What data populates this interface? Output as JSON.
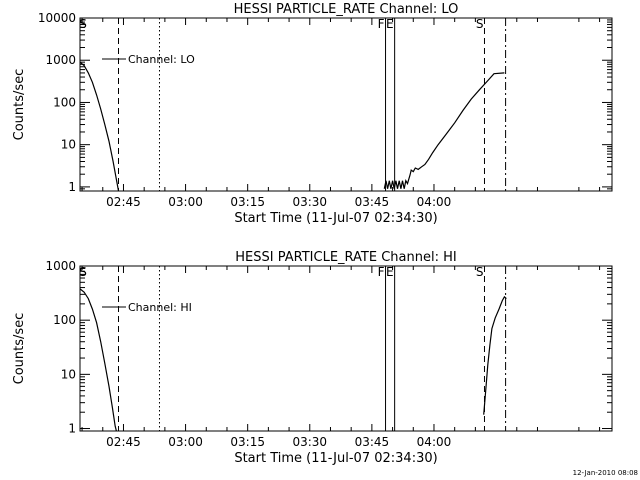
{
  "footer": {
    "timestamp": "12-Jan-2010 08:08"
  },
  "chart_data": [
    {
      "type": "line",
      "title": "HESSI PARTICLE_RATE Channel: LO",
      "xlabel": "Start Time (11-Jul-07 02:34:30)",
      "ylabel": "Counts/sec",
      "yscale": "log",
      "xlim": [
        154.5,
        283
      ],
      "ylim": [
        0.8,
        10000
      ],
      "x_unit": "minutes after 00:00 UT, 11-Jul-07",
      "x_ticks": [
        {
          "x": 165,
          "label": "02:45"
        },
        {
          "x": 180,
          "label": "03:00"
        },
        {
          "x": 195,
          "label": "03:15"
        },
        {
          "x": 210,
          "label": "03:30"
        },
        {
          "x": 225,
          "label": "03:45"
        },
        {
          "x": 240,
          "label": "04:00"
        }
      ],
      "y_ticks": [
        {
          "y": 1,
          "label": "1"
        },
        {
          "y": 10,
          "label": "10"
        },
        {
          "y": 100,
          "label": "100"
        },
        {
          "y": 1000,
          "label": "1000"
        },
        {
          "y": 10000,
          "label": "10000"
        }
      ],
      "legend": {
        "label": "Channel: LO",
        "placement": "top-left"
      },
      "series": [
        {
          "name": "Channel: LO",
          "segments": [
            [
              [
                154.5,
                900
              ],
              [
                155.5,
                750
              ],
              [
                156.5,
                500
              ],
              [
                157.5,
                300
              ],
              [
                158.5,
                150
              ],
              [
                159.5,
                70
              ],
              [
                160.5,
                30
              ],
              [
                161.5,
                12
              ],
              [
                162.5,
                4
              ],
              [
                163.3,
                1.5
              ],
              [
                163.8,
                0.8
              ]
            ],
            [
              [
                228,
                0.9
              ],
              [
                228.4,
                1.4
              ],
              [
                228.8,
                0.9
              ],
              [
                229.2,
                1.4
              ],
              [
                229.6,
                0.9
              ],
              [
                230,
                1.4
              ],
              [
                230.4,
                0.9
              ],
              [
                230.8,
                1.4
              ],
              [
                231.2,
                0.9
              ],
              [
                231.6,
                1.4
              ],
              [
                232,
                0.9
              ],
              [
                232.4,
                1.4
              ],
              [
                232.8,
                0.9
              ],
              [
                233.2,
                1.4
              ],
              [
                233.6,
                1.2
              ],
              [
                234.2,
                1.9
              ],
              [
                234.5,
                2.5
              ],
              [
                235,
                2.3
              ],
              [
                235.5,
                2.8
              ],
              [
                236.2,
                2.6
              ],
              [
                237,
                3.0
              ],
              [
                237.8,
                3.4
              ],
              [
                238.7,
                4.5
              ],
              [
                239.7,
                6.5
              ],
              [
                241,
                10
              ],
              [
                243,
                18
              ],
              [
                245,
                33
              ],
              [
                247,
                65
              ],
              [
                249,
                120
              ],
              [
                251,
                200
              ],
              [
                253,
                330
              ],
              [
                254.5,
                480
              ],
              [
                257,
                500
              ]
            ]
          ]
        }
      ],
      "annotations": [
        {
          "text": "S",
          "x": 154.8,
          "kind": "label"
        },
        {
          "text": "",
          "x": 163.8,
          "kind": "dashed"
        },
        {
          "text": "",
          "x": 173.7,
          "kind": "dotted"
        },
        {
          "text": "F",
          "x": 228.3,
          "kind": "solid"
        },
        {
          "text": "E",
          "x": 230.5,
          "kind": "solid"
        },
        {
          "text": "S",
          "x": 252.2,
          "kind": "dashed"
        },
        {
          "text": "",
          "x": 257.3,
          "kind": "dashdot"
        }
      ],
      "grid": false
    },
    {
      "type": "line",
      "title": "HESSI PARTICLE_RATE Channel: HI",
      "xlabel": "Start Time (11-Jul-07 02:34:30)",
      "ylabel": "Counts/sec",
      "yscale": "log",
      "xlim": [
        154.5,
        283
      ],
      "ylim": [
        0.9,
        1000
      ],
      "x_unit": "minutes after 00:00 UT, 11-Jul-07",
      "x_ticks": [
        {
          "x": 165,
          "label": "02:45"
        },
        {
          "x": 180,
          "label": "03:00"
        },
        {
          "x": 195,
          "label": "03:15"
        },
        {
          "x": 210,
          "label": "03:30"
        },
        {
          "x": 225,
          "label": "03:45"
        },
        {
          "x": 240,
          "label": "04:00"
        }
      ],
      "y_ticks": [
        {
          "y": 1,
          "label": "1"
        },
        {
          "y": 10,
          "label": "10"
        },
        {
          "y": 100,
          "label": "100"
        },
        {
          "y": 1000,
          "label": "1000"
        }
      ],
      "legend": {
        "label": "Channel: HI",
        "placement": "top-left"
      },
      "series": [
        {
          "name": "Channel: HI",
          "segments": [
            [
              [
                154.5,
                380
              ],
              [
                155.5,
                330
              ],
              [
                156.5,
                250
              ],
              [
                157.5,
                160
              ],
              [
                158.5,
                90
              ],
              [
                159.5,
                40
              ],
              [
                160.5,
                16
              ],
              [
                161.5,
                6
              ],
              [
                162.3,
                2.5
              ],
              [
                163,
                1.1
              ],
              [
                163.3,
                0.9
              ]
            ],
            [
              [
                252,
                1.8
              ],
              [
                252.5,
                5
              ],
              [
                253,
                15
              ],
              [
                253.5,
                35
              ],
              [
                254,
                70
              ],
              [
                254.8,
                110
              ],
              [
                255.7,
                160
              ],
              [
                256.5,
                230
              ],
              [
                257,
                270
              ],
              [
                257.5,
                250
              ]
            ]
          ]
        }
      ],
      "annotations": [
        {
          "text": "S",
          "x": 154.8,
          "kind": "label"
        },
        {
          "text": "",
          "x": 163.8,
          "kind": "dashed"
        },
        {
          "text": "",
          "x": 173.7,
          "kind": "dotted"
        },
        {
          "text": "F",
          "x": 228.3,
          "kind": "solid"
        },
        {
          "text": "E",
          "x": 230.5,
          "kind": "solid"
        },
        {
          "text": "S",
          "x": 252.2,
          "kind": "dashed"
        },
        {
          "text": "",
          "x": 257.3,
          "kind": "dashdot"
        }
      ],
      "grid": false
    }
  ]
}
